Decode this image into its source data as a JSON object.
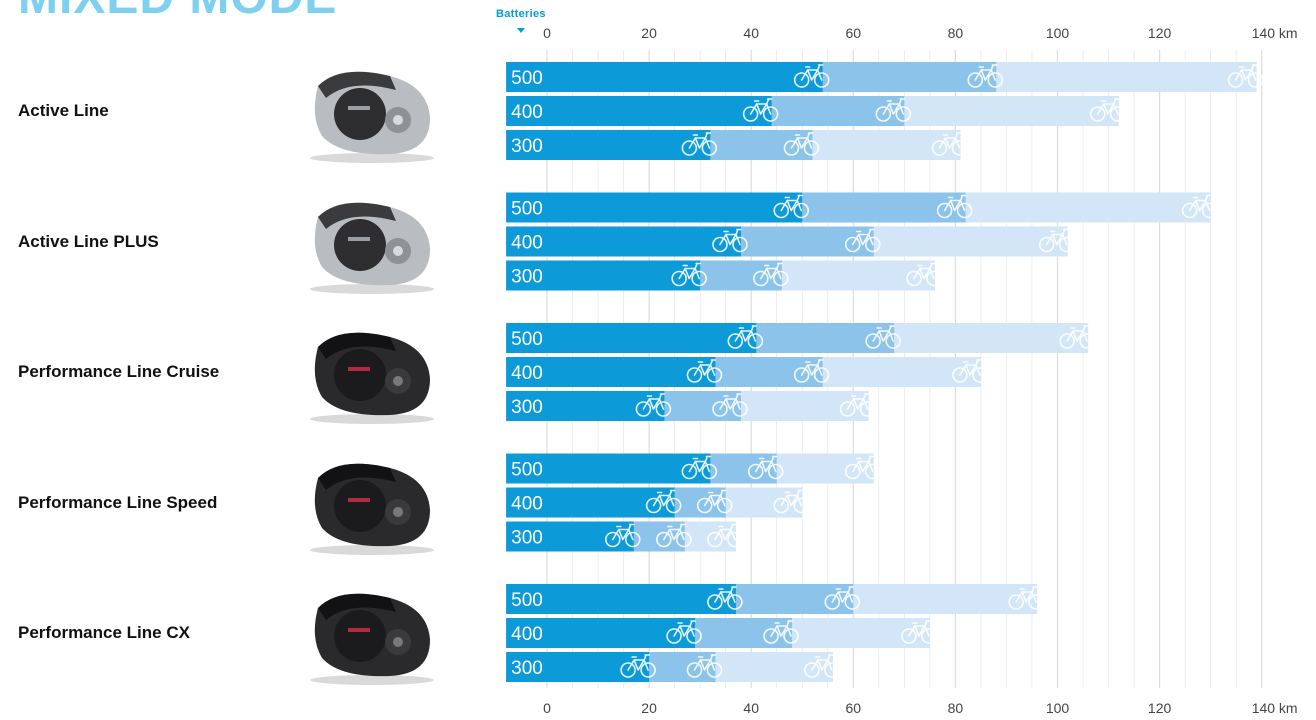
{
  "heading": "MIXED MODE",
  "batteries_label": "Batteries",
  "colors": {
    "heading": "#7fd0ee",
    "accent": "#009ddc",
    "bar_low": "#0c9ad8",
    "bar_mid": "#8cc3ea",
    "bar_high": "#d2e6f7",
    "grid": "#dcdcdc",
    "bike_icon": "#ffffff"
  },
  "chart_data": {
    "type": "bar",
    "orientation": "horizontal",
    "stacked_ranges": true,
    "x_unit": "km",
    "xlim": [
      -8,
      140
    ],
    "x_ticks": [
      0,
      20,
      40,
      60,
      80,
      100,
      120,
      140
    ],
    "x_tick_labels": [
      "0",
      "20",
      "40",
      "60",
      "80",
      "100",
      "120",
      "140 km"
    ],
    "x_axis_position": "top and bottom",
    "grid": true,
    "legend": "none",
    "groups": [
      {
        "name": "Active Line",
        "motor_icon": "silver-motor-icon",
        "rows": [
          {
            "battery": "500",
            "values": [
              54,
              88,
              139
            ]
          },
          {
            "battery": "400",
            "values": [
              44,
              70,
              112
            ]
          },
          {
            "battery": "300",
            "values": [
              32,
              52,
              81
            ]
          }
        ]
      },
      {
        "name": "Active Line PLUS",
        "motor_icon": "silver-motor-icon",
        "rows": [
          {
            "battery": "500",
            "values": [
              50,
              82,
              130
            ]
          },
          {
            "battery": "400",
            "values": [
              38,
              64,
              102
            ]
          },
          {
            "battery": "300",
            "values": [
              30,
              46,
              76
            ]
          }
        ]
      },
      {
        "name": "Performance Line Cruise",
        "motor_icon": "black-motor-icon",
        "rows": [
          {
            "battery": "500",
            "values": [
              41,
              68,
              106
            ]
          },
          {
            "battery": "400",
            "values": [
              33,
              54,
              85
            ]
          },
          {
            "battery": "300",
            "values": [
              23,
              38,
              63
            ]
          }
        ]
      },
      {
        "name": "Performance Line Speed",
        "motor_icon": "black-motor-icon",
        "rows": [
          {
            "battery": "500",
            "values": [
              32,
              45,
              64
            ]
          },
          {
            "battery": "400",
            "values": [
              25,
              35,
              50
            ]
          },
          {
            "battery": "300",
            "values": [
              17,
              27,
              37
            ]
          }
        ]
      },
      {
        "name": "Performance Line CX",
        "motor_icon": "black-motor-icon",
        "rows": [
          {
            "battery": "500",
            "values": [
              37,
              60,
              96
            ]
          },
          {
            "battery": "400",
            "values": [
              29,
              48,
              75
            ]
          },
          {
            "battery": "300",
            "values": [
              20,
              33,
              56
            ]
          }
        ]
      }
    ]
  }
}
